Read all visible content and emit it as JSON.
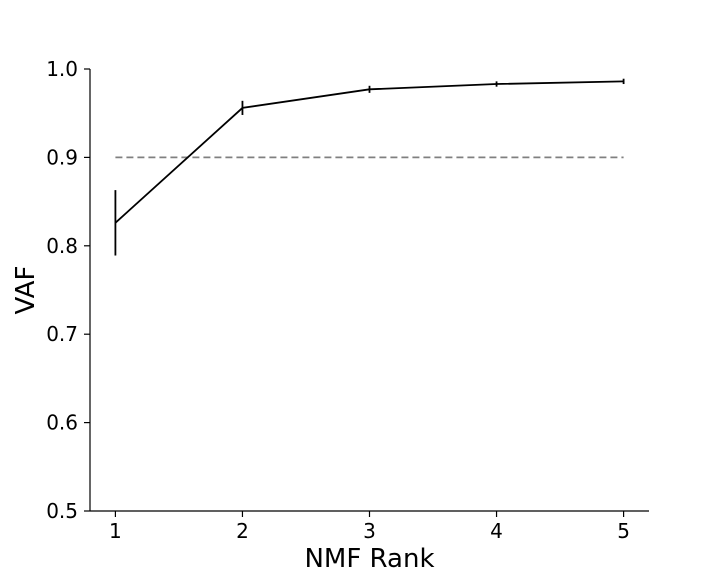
{
  "chart_data": {
    "type": "line",
    "title": "",
    "xlabel": "NMF Rank",
    "ylabel": "VAF",
    "x": [
      1,
      2,
      3,
      4,
      5
    ],
    "series": [
      {
        "values": [
          0.826,
          0.956,
          0.977,
          0.983,
          0.986
        ],
        "error": [
          0.037,
          0.008,
          0.004,
          0.003,
          0.003
        ],
        "color": "#000000"
      }
    ],
    "reference_line": {
      "y": 0.9,
      "x_range": [
        1,
        5
      ],
      "style": "dashed",
      "color": "#808080"
    },
    "xlim": [
      0.8,
      5.2
    ],
    "ylim": [
      0.5,
      1.0
    ],
    "x_ticks": [
      "1",
      "2",
      "3",
      "4",
      "5"
    ],
    "y_ticks": [
      "0.5",
      "0.6",
      "0.7",
      "0.8",
      "0.9",
      "1.0"
    ],
    "grid": false,
    "legend": "none"
  }
}
